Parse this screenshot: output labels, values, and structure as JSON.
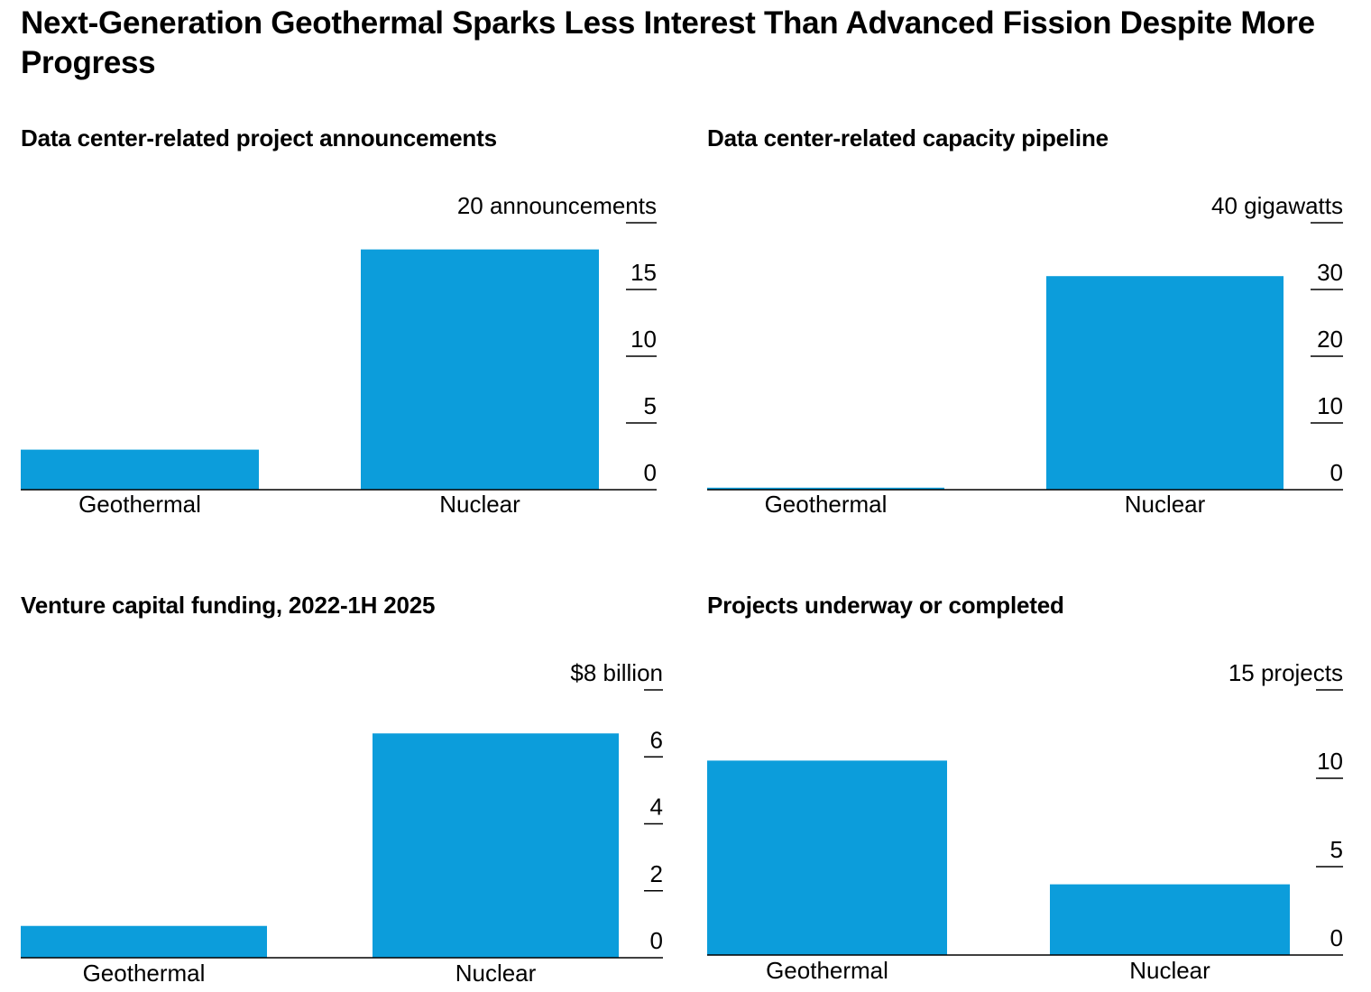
{
  "title": "Next-Generation Geothermal Sparks Less Interest Than Advanced Fission Despite More Progress",
  "colors": {
    "bar": "#0c9ddb",
    "axis": "#000000",
    "text": "#000000"
  },
  "chart_data": [
    {
      "type": "bar",
      "title": "Data center-related project announcements",
      "unit_label": "20 announcements",
      "categories": [
        "Geothermal",
        "Nuclear"
      ],
      "values": [
        3,
        18
      ],
      "yticks": [
        0,
        5,
        10,
        15,
        20
      ],
      "ytick_labels": [
        "0",
        "5",
        "10",
        "15",
        "20 announcements"
      ],
      "ylim": [
        0,
        20
      ],
      "grid": false,
      "axis_position": "right"
    },
    {
      "type": "bar",
      "title": "Data center-related capacity pipeline",
      "unit_label": "40 gigawatts",
      "categories": [
        "Geothermal",
        "Nuclear"
      ],
      "values": [
        0.3,
        32
      ],
      "yticks": [
        0,
        10,
        20,
        30,
        40
      ],
      "ytick_labels": [
        "0",
        "10",
        "20",
        "30",
        "40 gigawatts"
      ],
      "ylim": [
        0,
        40
      ],
      "grid": false,
      "axis_position": "right"
    },
    {
      "type": "bar",
      "title": "Venture capital funding, 2022-1H 2025",
      "unit_label": "$8 billion",
      "categories": [
        "Geothermal",
        "Nuclear"
      ],
      "values": [
        0.95,
        6.7
      ],
      "yticks": [
        0,
        2,
        4,
        6,
        8
      ],
      "ytick_labels": [
        "0",
        "2",
        "4",
        "6",
        "$8 billion"
      ],
      "ylim": [
        0,
        8
      ],
      "grid": false,
      "axis_position": "right"
    },
    {
      "type": "bar",
      "title": "Projects underway or completed",
      "unit_label": "15 projects",
      "categories": [
        "Geothermal",
        "Nuclear"
      ],
      "values": [
        11,
        4
      ],
      "yticks": [
        0,
        5,
        10,
        15
      ],
      "ytick_labels": [
        "0",
        "5",
        "10",
        "15 projects"
      ],
      "ylim": [
        0,
        15
      ],
      "grid": false,
      "axis_position": "right"
    }
  ]
}
